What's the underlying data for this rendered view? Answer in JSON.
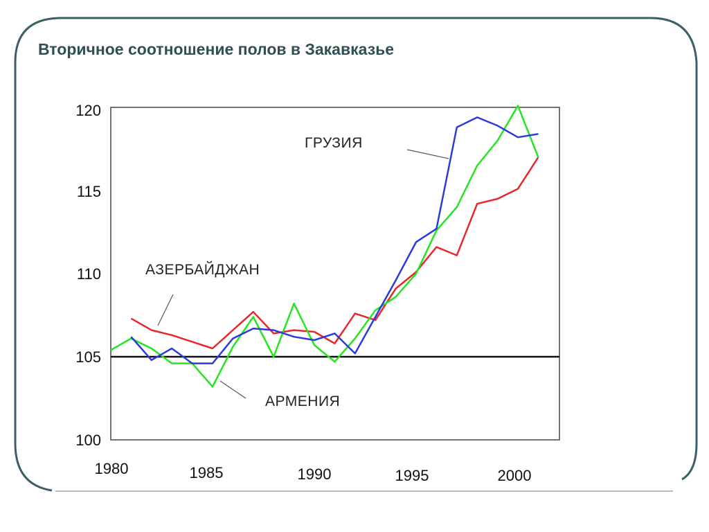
{
  "slide": {
    "title": "Вторичное соотношение полов в Закавказье"
  },
  "colors": {
    "frame": "#3b5f66",
    "title": "#2f4f55",
    "azerbaijan": "#e8262c",
    "georgia": "#2a3bdb",
    "armenia": "#22e61e",
    "reference_line": "#111111"
  },
  "chart_data": {
    "type": "line",
    "title": "",
    "xlabel": "",
    "ylabel": "",
    "xlim": [
      1979,
      2002
    ],
    "ylim": [
      100,
      120
    ],
    "x_ticks": [
      "1980",
      "1985",
      "1990",
      "1995",
      "2000"
    ],
    "y_ticks": [
      "100",
      "105",
      "110",
      "115",
      "120"
    ],
    "reference_line": 105,
    "grid": false,
    "legend": "inline labels",
    "series": [
      {
        "name": "АЗЕРБАЙДЖАН",
        "color": "#e8262c",
        "x": [
          1981,
          1982,
          1983,
          1984,
          1985,
          1986,
          1987,
          1988,
          1989,
          1990,
          1991,
          1992,
          1993,
          1994,
          1995,
          1996,
          1997,
          1998,
          1999,
          2000,
          2001
        ],
        "y": [
          107.3,
          106.6,
          106.3,
          105.9,
          105.5,
          106.6,
          107.7,
          106.4,
          106.6,
          106.5,
          105.8,
          107.6,
          107.2,
          109.1,
          110.1,
          111.6,
          111.1,
          114.2,
          114.5,
          115.1,
          117.0
        ]
      },
      {
        "name": "ГРУЗИЯ",
        "color": "#2a3bdb",
        "x": [
          1981,
          1982,
          1983,
          1984,
          1985,
          1986,
          1987,
          1988,
          1989,
          1990,
          1991,
          1992,
          1993,
          1994,
          1995,
          1996,
          1997,
          1998,
          1999,
          2000,
          2001
        ],
        "y": [
          106.2,
          104.8,
          105.5,
          104.6,
          104.6,
          106.1,
          106.7,
          106.6,
          106.2,
          106.0,
          106.4,
          105.2,
          107.4,
          109.6,
          111.9,
          112.7,
          118.8,
          119.4,
          118.9,
          118.2,
          118.4
        ]
      },
      {
        "name": "АРМЕНИЯ",
        "color": "#22e61e",
        "x": [
          1980,
          1981,
          1982,
          1983,
          1984,
          1985,
          1986,
          1987,
          1988,
          1989,
          1990,
          1991,
          1992,
          1993,
          1994,
          1995,
          1996,
          1997,
          1998,
          1999,
          2000,
          2001
        ],
        "y": [
          105.4,
          106.1,
          105.5,
          104.6,
          104.6,
          103.2,
          105.6,
          107.4,
          105.0,
          108.2,
          105.7,
          104.7,
          106.1,
          107.8,
          108.6,
          110.0,
          112.6,
          114.0,
          116.5,
          118.0,
          120.1,
          117.0
        ]
      }
    ]
  }
}
